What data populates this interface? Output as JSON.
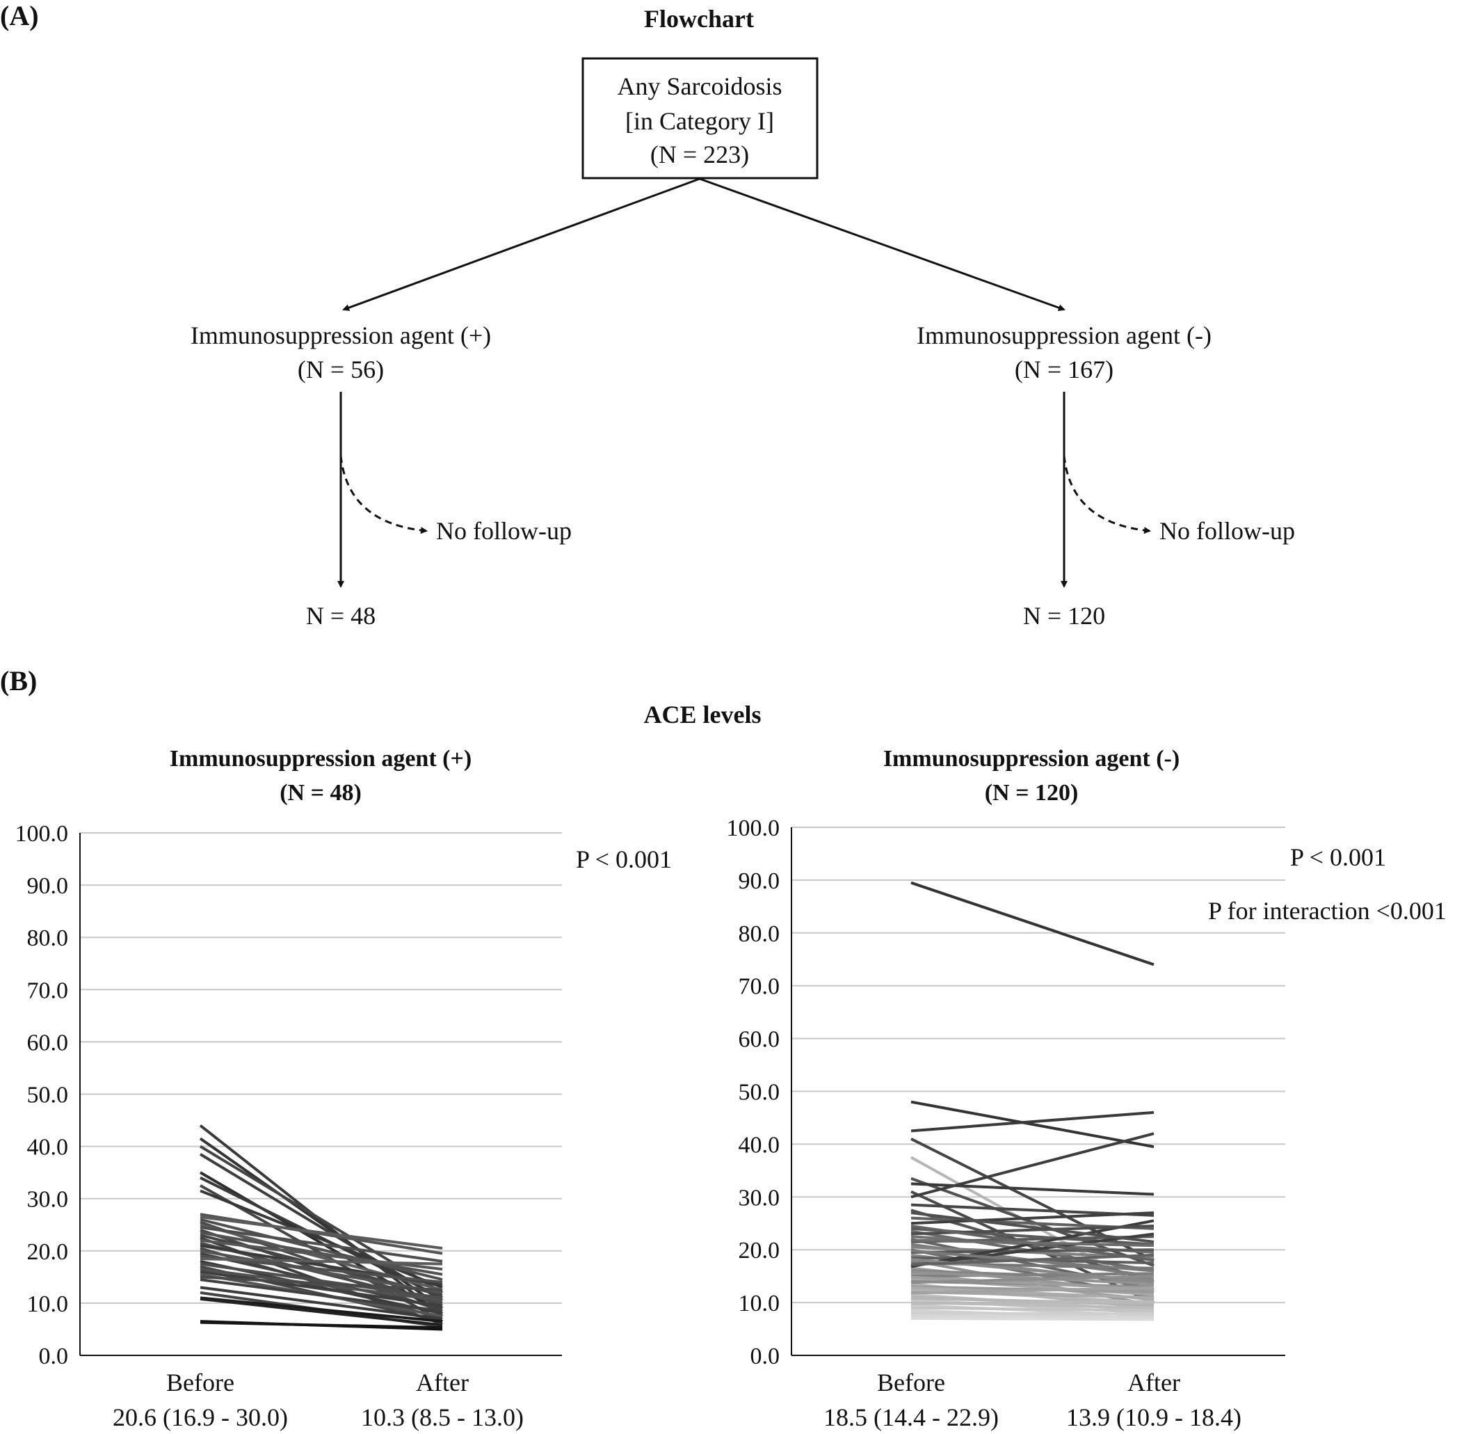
{
  "panel_a": {
    "label": "(A)",
    "title": "Flowchart",
    "root": {
      "line1": "Any Sarcoidosis",
      "line2": "[in Category I]",
      "line3": "(N = 223)"
    },
    "left": {
      "line1": "Immunosuppression agent (+)",
      "line2": "(N = 56)",
      "exclude": "No follow-up",
      "final": "N = 48"
    },
    "right": {
      "line1": "Immunosuppression agent (-)",
      "line2": "(N = 167)",
      "exclude": "No follow-up",
      "final": "N = 120"
    }
  },
  "panel_b": {
    "label": "(B)",
    "title": "ACE levels"
  },
  "chart_data": [
    {
      "type": "line",
      "title": "Immunosuppression agent (+)",
      "subtitle": "(N = 48)",
      "x_categories": [
        "Before",
        "After"
      ],
      "x_summaries": [
        "20.6 (16.9 - 30.0)",
        "10.3 (8.5 - 13.0)"
      ],
      "ylim": [
        0,
        100
      ],
      "yticks": [
        "0.0",
        "10.0",
        "20.0",
        "30.0",
        "40.0",
        "50.0",
        "60.0",
        "70.0",
        "80.0",
        "90.0",
        "100.0"
      ],
      "grid": true,
      "annotations": [
        "P < 0.001"
      ],
      "series": [
        {
          "values": [
            44.0,
            7.5
          ],
          "color": "#3a3a3a"
        },
        {
          "values": [
            41.5,
            9.0
          ],
          "color": "#333333"
        },
        {
          "values": [
            40.0,
            12.0
          ],
          "color": "#444444"
        },
        {
          "values": [
            38.5,
            10.5
          ],
          "color": "#3d3d3d"
        },
        {
          "values": [
            35.0,
            8.0
          ],
          "color": "#2e2e2e"
        },
        {
          "values": [
            34.0,
            11.0
          ],
          "color": "#3a3a3a"
        },
        {
          "values": [
            32.5,
            6.5
          ],
          "color": "#454545"
        },
        {
          "values": [
            31.5,
            13.0
          ],
          "color": "#383838"
        },
        {
          "values": [
            27.0,
            19.5
          ],
          "color": "#555555"
        },
        {
          "values": [
            26.5,
            20.5
          ],
          "color": "#5a5a5a"
        },
        {
          "values": [
            26.0,
            14.5
          ],
          "color": "#505050"
        },
        {
          "values": [
            25.5,
            9.5
          ],
          "color": "#4a4a4a"
        },
        {
          "values": [
            25.0,
            12.5
          ],
          "color": "#5c5c5c"
        },
        {
          "values": [
            24.5,
            18.0
          ],
          "color": "#4e4e4e"
        },
        {
          "values": [
            24.0,
            8.5
          ],
          "color": "#474747"
        },
        {
          "values": [
            23.5,
            15.5
          ],
          "color": "#525252"
        },
        {
          "values": [
            23.0,
            11.5
          ],
          "color": "#444444"
        },
        {
          "values": [
            22.5,
            6.0
          ],
          "color": "#3f3f3f"
        },
        {
          "values": [
            22.0,
            16.5
          ],
          "color": "#565656"
        },
        {
          "values": [
            21.5,
            10.0
          ],
          "color": "#4b4b4b"
        },
        {
          "values": [
            21.0,
            13.5
          ],
          "color": "#3a3a3a"
        },
        {
          "values": [
            20.5,
            7.0
          ],
          "color": "#484848"
        },
        {
          "values": [
            20.0,
            12.0
          ],
          "color": "#535353"
        },
        {
          "values": [
            19.5,
            9.0
          ],
          "color": "#424242"
        },
        {
          "values": [
            19.0,
            14.0
          ],
          "color": "#4f4f4f"
        },
        {
          "values": [
            18.5,
            17.5
          ],
          "color": "#5b5b5b"
        },
        {
          "values": [
            18.0,
            8.0
          ],
          "color": "#3c3c3c"
        },
        {
          "values": [
            17.5,
            11.0
          ],
          "color": "#4d4d4d"
        },
        {
          "values": [
            17.0,
            6.5
          ],
          "color": "#464646"
        },
        {
          "values": [
            16.5,
            10.5
          ],
          "color": "#505050"
        },
        {
          "values": [
            16.0,
            9.5
          ],
          "color": "#3e3e3e"
        },
        {
          "values": [
            15.5,
            7.5
          ],
          "color": "#555555"
        },
        {
          "values": [
            15.0,
            12.5
          ],
          "color": "#494949"
        },
        {
          "values": [
            14.5,
            8.5
          ],
          "color": "#404040"
        },
        {
          "values": [
            13.0,
            7.0
          ],
          "color": "#3b3b3b"
        },
        {
          "values": [
            12.0,
            5.5
          ],
          "color": "#444444"
        },
        {
          "values": [
            11.0,
            6.5
          ],
          "color": "#1a1a1a"
        },
        {
          "values": [
            10.8,
            5.8
          ],
          "color": "#222222"
        },
        {
          "values": [
            6.5,
            5.0
          ],
          "color": "#111111"
        },
        {
          "values": [
            6.3,
            5.3
          ],
          "color": "#151515"
        }
      ]
    },
    {
      "type": "line",
      "title": "Immunosuppression agent (-)",
      "subtitle": "(N = 120)",
      "x_categories": [
        "Before",
        "After"
      ],
      "x_summaries": [
        "18.5 (14.4 - 22.9)",
        "13.9 (10.9 - 18.4)"
      ],
      "ylim": [
        0,
        100
      ],
      "yticks": [
        "0.0",
        "10.0",
        "20.0",
        "30.0",
        "40.0",
        "50.0",
        "60.0",
        "70.0",
        "80.0",
        "90.0",
        "100.0"
      ],
      "grid": true,
      "annotations": [
        "P < 0.001",
        "P for interaction <0.001"
      ],
      "series": [
        {
          "values": [
            89.5,
            74.0
          ],
          "color": "#333333"
        },
        {
          "values": [
            48.0,
            39.5
          ],
          "color": "#333333"
        },
        {
          "values": [
            42.5,
            46.0
          ],
          "color": "#3a3a3a"
        },
        {
          "values": [
            41.0,
            18.0
          ],
          "color": "#444444"
        },
        {
          "values": [
            37.5,
            12.0
          ],
          "color": "#b5b5b5"
        },
        {
          "values": [
            33.5,
            17.0
          ],
          "color": "#505050"
        },
        {
          "values": [
            32.5,
            30.5
          ],
          "color": "#3a3a3a"
        },
        {
          "values": [
            31.0,
            10.0
          ],
          "color": "#4a4a4a"
        },
        {
          "values": [
            30.0,
            42.0
          ],
          "color": "#3d3d3d"
        },
        {
          "values": [
            28.5,
            26.5
          ],
          "color": "#454545"
        },
        {
          "values": [
            27.5,
            14.0
          ],
          "color": "#555555"
        },
        {
          "values": [
            26.0,
            24.0
          ],
          "color": "#606060"
        },
        {
          "values": [
            25.0,
            27.0
          ],
          "color": "#3f3f3f"
        },
        {
          "values": [
            24.0,
            21.0
          ],
          "color": "#5a5a5a"
        },
        {
          "values": [
            23.5,
            16.0
          ],
          "color": "#6a6a6a"
        },
        {
          "values": [
            22.5,
            19.5
          ],
          "color": "#707070"
        },
        {
          "values": [
            22.0,
            12.5
          ],
          "color": "#656565"
        },
        {
          "values": [
            21.5,
            22.5
          ],
          "color": "#585858"
        },
        {
          "values": [
            21.0,
            15.0
          ],
          "color": "#7a7a7a"
        },
        {
          "values": [
            20.5,
            18.5
          ],
          "color": "#808080"
        },
        {
          "values": [
            20.0,
            11.0
          ],
          "color": "#6e6e6e"
        },
        {
          "values": [
            19.5,
            20.0
          ],
          "color": "#575757"
        },
        {
          "values": [
            19.0,
            13.5
          ],
          "color": "#8a8a8a"
        },
        {
          "values": [
            18.5,
            17.5
          ],
          "color": "#5e5e5e"
        },
        {
          "values": [
            18.0,
            9.5
          ],
          "color": "#909090"
        },
        {
          "values": [
            17.5,
            16.5
          ],
          "color": "#757575"
        },
        {
          "values": [
            17.0,
            23.0
          ],
          "color": "#3e3e3e"
        },
        {
          "values": [
            16.5,
            12.0
          ],
          "color": "#999999"
        },
        {
          "values": [
            16.0,
            14.5
          ],
          "color": "#858585"
        },
        {
          "values": [
            15.5,
            10.5
          ],
          "color": "#a0a0a0"
        },
        {
          "values": [
            15.0,
            15.5
          ],
          "color": "#7e7e7e"
        },
        {
          "values": [
            14.5,
            11.5
          ],
          "color": "#a8a8a8"
        },
        {
          "values": [
            14.0,
            13.0
          ],
          "color": "#8e8e8e"
        },
        {
          "values": [
            13.5,
            9.0
          ],
          "color": "#b0b0b0"
        },
        {
          "values": [
            13.0,
            12.0
          ],
          "color": "#9a9a9a"
        },
        {
          "values": [
            12.5,
            10.0
          ],
          "color": "#b8b8b8"
        },
        {
          "values": [
            12.0,
            11.0
          ],
          "color": "#a5a5a5"
        },
        {
          "values": [
            11.5,
            8.5
          ],
          "color": "#c0c0c0"
        },
        {
          "values": [
            11.0,
            9.5
          ],
          "color": "#b2b2b2"
        },
        {
          "values": [
            10.5,
            8.0
          ],
          "color": "#c8c8c8"
        },
        {
          "values": [
            10.0,
            9.0
          ],
          "color": "#bcbcbc"
        },
        {
          "values": [
            9.5,
            7.5
          ],
          "color": "#cccccc"
        },
        {
          "values": [
            9.0,
            8.5
          ],
          "color": "#c4c4c4"
        },
        {
          "values": [
            8.5,
            7.0
          ],
          "color": "#d2d2d2"
        },
        {
          "values": [
            8.0,
            7.8
          ],
          "color": "#cfcfcf"
        },
        {
          "values": [
            7.5,
            7.2
          ],
          "color": "#d6d6d6"
        },
        {
          "values": [
            7.0,
            6.8
          ],
          "color": "#dadada"
        },
        {
          "values": [
            16.8,
            25.5
          ],
          "color": "#3c3c3c"
        },
        {
          "values": [
            23.0,
            24.5
          ],
          "color": "#4c4c4c"
        },
        {
          "values": [
            27.0,
            21.5
          ],
          "color": "#4f4f4f"
        },
        {
          "values": [
            24.5,
            18.0
          ],
          "color": "#626262"
        },
        {
          "values": [
            21.8,
            20.8
          ],
          "color": "#6c6c6c"
        },
        {
          "values": [
            19.8,
            16.0
          ],
          "color": "#787878"
        },
        {
          "values": [
            18.2,
            14.0
          ],
          "color": "#888888"
        },
        {
          "values": [
            17.2,
            19.0
          ],
          "color": "#616161"
        },
        {
          "values": [
            15.8,
            13.5
          ],
          "color": "#929292"
        },
        {
          "values": [
            14.8,
            12.5
          ],
          "color": "#9e9e9e"
        },
        {
          "values": [
            13.8,
            15.0
          ],
          "color": "#8c8c8c"
        },
        {
          "values": [
            12.8,
            10.8
          ],
          "color": "#ababab"
        },
        {
          "values": [
            11.8,
            12.8
          ],
          "color": "#a2a2a2"
        },
        {
          "values": [
            10.8,
            9.8
          ],
          "color": "#b6b6b6"
        },
        {
          "values": [
            9.8,
            10.2
          ],
          "color": "#bababa"
        }
      ]
    }
  ]
}
